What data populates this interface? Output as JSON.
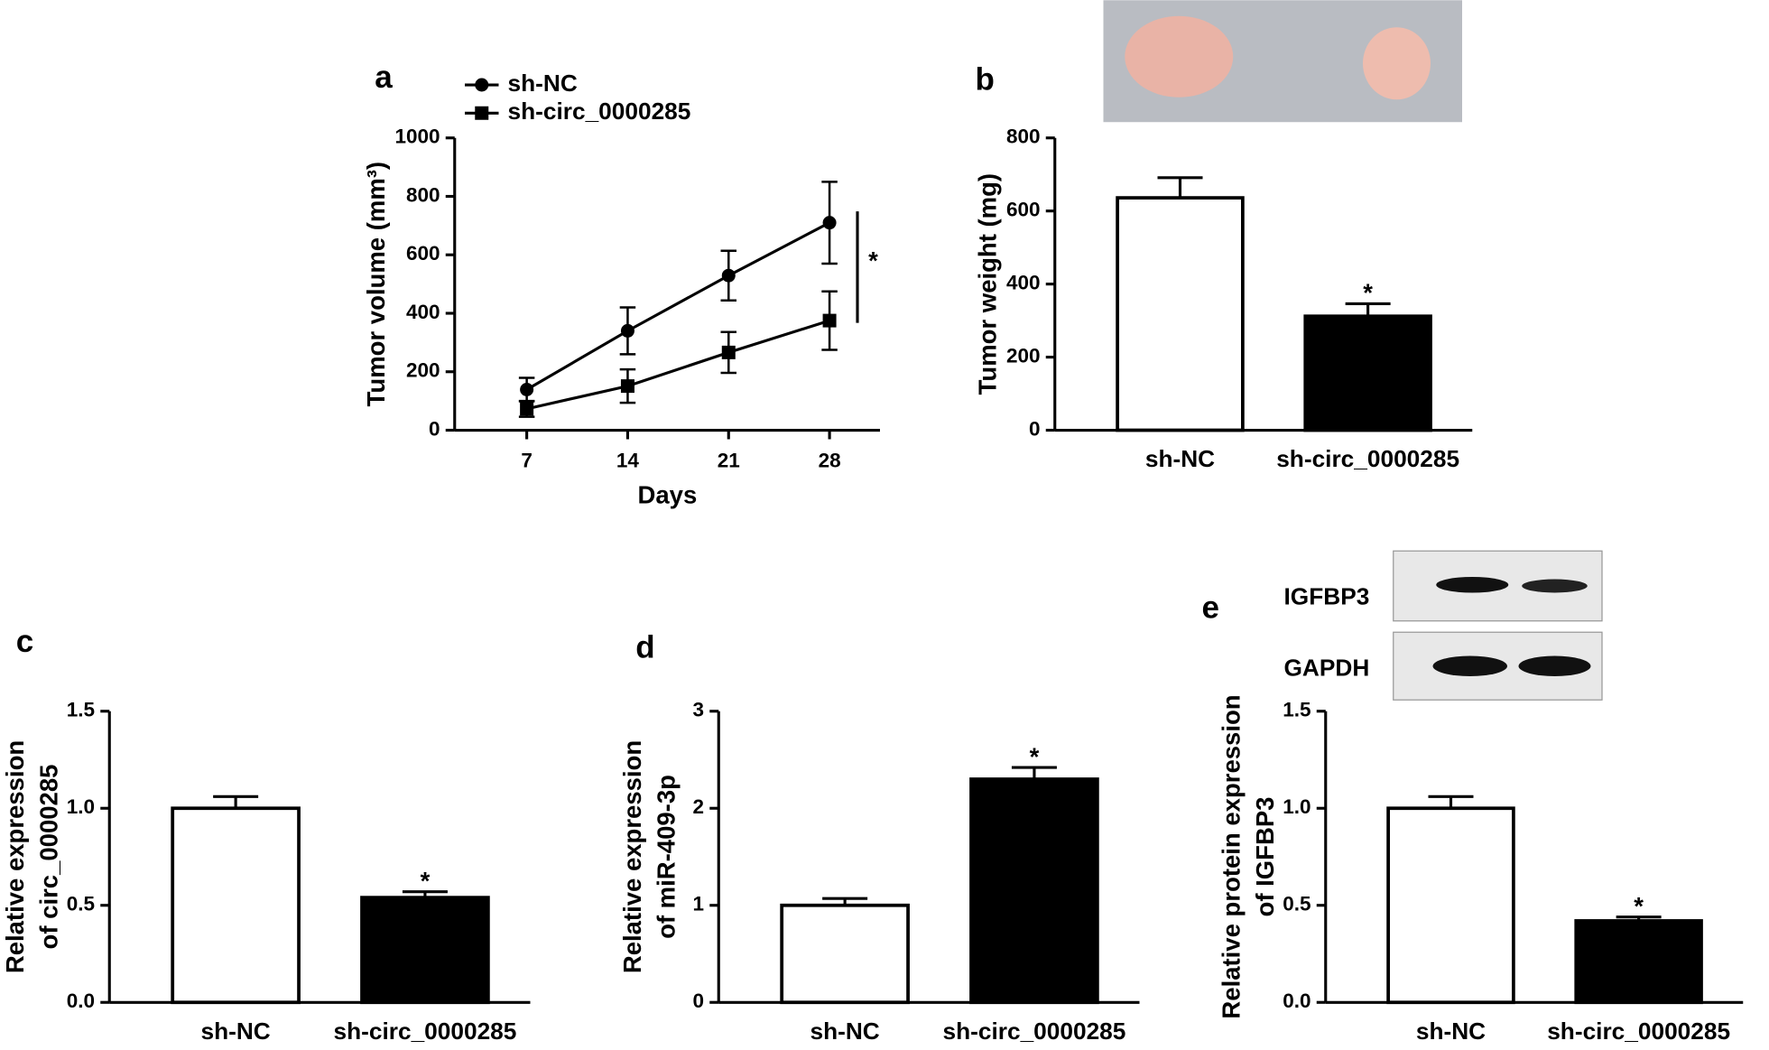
{
  "chart_data": [
    {
      "type": "line",
      "panel": "a",
      "xlabel": "Days",
      "ylabel": "Tumor volume (mm³)",
      "x": [
        7,
        14,
        21,
        28
      ],
      "xlim": [
        2,
        31.5
      ],
      "xticks": [
        7,
        14,
        21,
        28
      ],
      "ylim": [
        0,
        1000
      ],
      "yticks": [
        0,
        200,
        400,
        600,
        800,
        1000
      ],
      "series": [
        {
          "name": "sh-NC",
          "color": "#000000",
          "marker": "circle",
          "values": [
            139,
            340,
            529,
            710
          ],
          "errors": [
            40,
            80,
            85,
            140
          ]
        },
        {
          "name": "sh-circ_0000285",
          "color": "#000000",
          "marker": "square",
          "values": [
            73,
            151,
            266,
            375
          ],
          "errors": [
            27,
            57,
            70,
            100
          ]
        }
      ],
      "significance": "*"
    },
    {
      "type": "bar",
      "panel": "b",
      "ylabel": "Tumor weight (mg)",
      "categories": [
        "sh-NC",
        "sh-circ_0000285"
      ],
      "values": [
        636,
        312
      ],
      "errors": [
        55,
        34
      ],
      "colors": [
        "#ffffff",
        "#000000"
      ],
      "ylim": [
        0,
        800
      ],
      "yticks": [
        0,
        200,
        400,
        600,
        800
      ],
      "significance": [
        null,
        "*"
      ]
    },
    {
      "type": "bar",
      "panel": "c",
      "ylabel": [
        "Relative expression",
        "of circ_0000285"
      ],
      "categories": [
        "sh-NC",
        "sh-circ_0000285"
      ],
      "values": [
        1.0,
        0.54
      ],
      "errors": [
        0.06,
        0.03
      ],
      "colors": [
        "#ffffff",
        "#000000"
      ],
      "ylim": [
        0,
        1.5
      ],
      "yticks": [
        {
          "value": 0,
          "label": "0.0"
        },
        {
          "value": 0.5,
          "label": "0.5"
        },
        {
          "value": 1,
          "label": "1.0"
        },
        {
          "value": 1.5,
          "label": "1.5"
        }
      ],
      "significance": [
        null,
        "*"
      ]
    },
    {
      "type": "bar",
      "panel": "d",
      "ylabel": [
        "Relative expression",
        "of miR-409-3p"
      ],
      "categories": [
        "sh-NC",
        "sh-circ_0000285"
      ],
      "values": [
        1.0,
        2.3
      ],
      "errors": [
        0.07,
        0.12
      ],
      "colors": [
        "#ffffff",
        "#000000"
      ],
      "ylim": [
        0,
        3
      ],
      "yticks": [
        0,
        1,
        2,
        3
      ],
      "significance": [
        null,
        "*"
      ]
    },
    {
      "type": "bar",
      "panel": "e",
      "ylabel": [
        "Relative protein expression",
        "of IGFBP3"
      ],
      "categories": [
        "sh-NC",
        "sh-circ_0000285"
      ],
      "values": [
        1.0,
        0.42
      ],
      "errors": [
        0.06,
        0.02
      ],
      "colors": [
        "#ffffff",
        "#000000"
      ],
      "ylim": [
        0,
        1.5
      ],
      "yticks": [
        {
          "value": 0,
          "label": "0.0"
        },
        {
          "value": 0.5,
          "label": "0.5"
        },
        {
          "value": 1,
          "label": "1.0"
        },
        {
          "value": 1.5,
          "label": "1.5"
        }
      ],
      "significance": [
        null,
        "*"
      ],
      "blot_labels": [
        "IGFBP3",
        "GAPDH"
      ]
    }
  ]
}
